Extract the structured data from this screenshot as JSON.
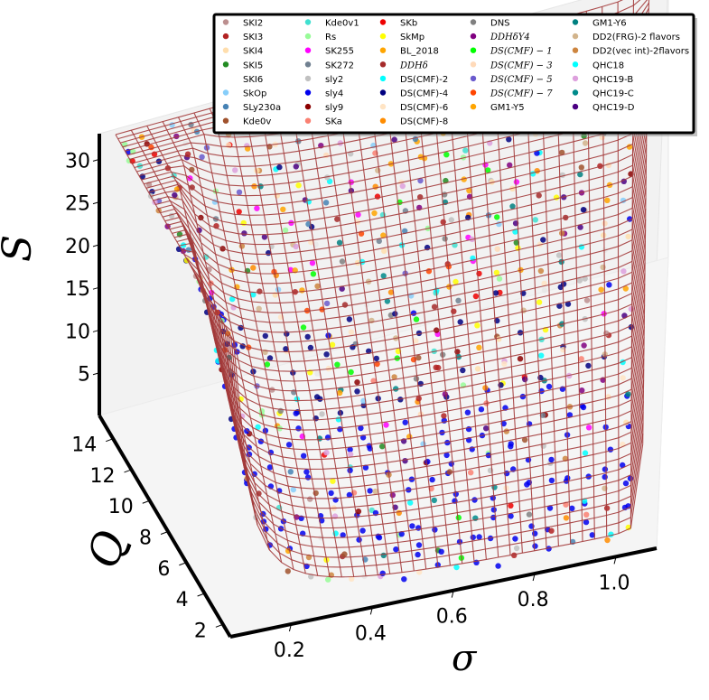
{
  "chart_data": {
    "type": "scatter",
    "projection": "3d",
    "title": "",
    "xlabel": "σ",
    "ylabel": "Q",
    "zlabel": "S",
    "xlim": [
      0.05,
      1.1
    ],
    "ylim": [
      1.2,
      15.5
    ],
    "zlim": [
      0,
      33
    ],
    "x_ticks": [
      "0.2",
      "0.4",
      "0.6",
      "0.8",
      "1.0"
    ],
    "y_ticks": [
      "2",
      "4",
      "6",
      "8",
      "10",
      "12",
      "14"
    ],
    "z_ticks": [
      "5",
      "10",
      "15",
      "20",
      "25",
      "30"
    ],
    "grid": true,
    "legend_position": "top-right",
    "surface": {
      "type": "wireframe",
      "color": "#a33b3b"
    },
    "series": [
      {
        "name": "SKI2",
        "color": "#bc8f8f",
        "math": false
      },
      {
        "name": "SKI3",
        "color": "#b22222",
        "math": false
      },
      {
        "name": "SKI4",
        "color": "#ffdead",
        "math": false
      },
      {
        "name": "SKI5",
        "color": "#228b22",
        "math": false
      },
      {
        "name": "SKI6",
        "color": "#ffffff",
        "math": false
      },
      {
        "name": "SkOp",
        "color": "#87cefa",
        "math": false
      },
      {
        "name": "SLy230a",
        "color": "#4682b4",
        "math": false
      },
      {
        "name": "Kde0v",
        "color": "#a0522d",
        "math": false
      },
      {
        "name": "Kde0v1",
        "color": "#40e0d0",
        "math": false
      },
      {
        "name": "Rs",
        "color": "#98fb98",
        "math": false
      },
      {
        "name": "SK255",
        "color": "#ff00ff",
        "math": false
      },
      {
        "name": "SK272",
        "color": "#708090",
        "math": false
      },
      {
        "name": "sly2",
        "color": "#c0c0c0",
        "math": false
      },
      {
        "name": "sly4",
        "color": "#0000ee",
        "math": false
      },
      {
        "name": "sly9",
        "color": "#8b0000",
        "math": false
      },
      {
        "name": "SKa",
        "color": "#fa8072",
        "math": false
      },
      {
        "name": "SKb",
        "color": "#ee0000",
        "math": false
      },
      {
        "name": "SkMp",
        "color": "#ffff00",
        "math": false
      },
      {
        "name": "BL_2018",
        "color": "#ffa500",
        "math": false
      },
      {
        "name": "DDHδ",
        "color": "#a52a2a",
        "math": true
      },
      {
        "name": "DS(CMF)-2",
        "color": "#00ffff",
        "math": false
      },
      {
        "name": "DS(CMF)-4",
        "color": "#000080",
        "math": false
      },
      {
        "name": "DS(CMF)-6",
        "color": "#ffe4c4",
        "math": false
      },
      {
        "name": "DS(CMF)-8",
        "color": "#ff8c00",
        "math": false
      },
      {
        "name": "DNS",
        "color": "#808080",
        "math": false
      },
      {
        "name": "DDHδY4",
        "color": "#800080",
        "math": true
      },
      {
        "name": "DS(CMF) − 1",
        "color": "#00ff00",
        "math": true
      },
      {
        "name": "DS(CMF) − 3",
        "color": "#ffdab9",
        "math": true
      },
      {
        "name": "DS(CMF) − 5",
        "color": "#6a5acd",
        "math": true
      },
      {
        "name": "DS(CMF) − 7",
        "color": "#ff4500",
        "math": true
      },
      {
        "name": "GM1-Y5",
        "color": "#ffa500",
        "math": false
      },
      {
        "name": "GM1-Y6",
        "color": "#008080",
        "math": false
      },
      {
        "name": "DD2(FRG)-2 flavors",
        "color": "#d2b48c",
        "math": false
      },
      {
        "name": "DD2(vec int)-2flavors",
        "color": "#cd853f",
        "math": false
      },
      {
        "name": "QHC18",
        "color": "#00ffff",
        "math": false
      },
      {
        "name": "QHC19-B",
        "color": "#dda0dd",
        "math": false
      },
      {
        "name": "QHC19-C",
        "color": "#008b8b",
        "math": false
      },
      {
        "name": "QHC19-D",
        "color": "#4b0082",
        "math": false
      }
    ]
  }
}
